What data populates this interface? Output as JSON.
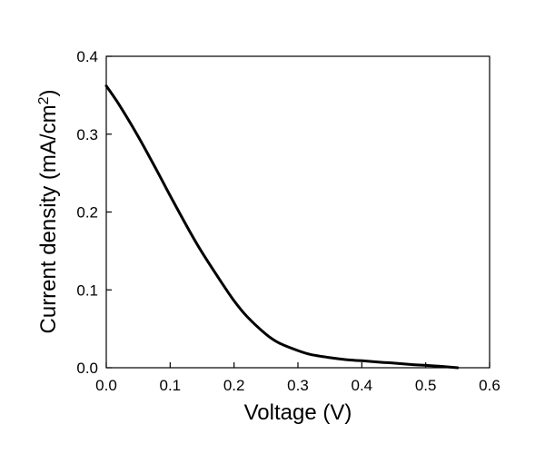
{
  "chart_data": {
    "type": "line",
    "title": "",
    "xlabel": "Voltage (V)",
    "ylabel": "Current density (mA/cm",
    "ylabel_superscript": "2",
    "ylabel_suffix": ")",
    "xlim": [
      0.0,
      0.6
    ],
    "ylim": [
      0.0,
      0.4
    ],
    "x_ticks": [
      0.0,
      0.1,
      0.2,
      0.3,
      0.4,
      0.5,
      0.6
    ],
    "y_ticks": [
      0.0,
      0.1,
      0.2,
      0.3,
      0.4
    ],
    "x_tick_labels": [
      "0.0",
      "0.1",
      "0.2",
      "0.3",
      "0.4",
      "0.5",
      "0.6"
    ],
    "y_tick_labels": [
      "0.0",
      "0.1",
      "0.2",
      "0.3",
      "0.4"
    ],
    "grid": false,
    "legend": "none",
    "line_color": "#000000",
    "series": [
      {
        "x": [
          0.0,
          0.02,
          0.05,
          0.08,
          0.1,
          0.13,
          0.15,
          0.18,
          0.2,
          0.22,
          0.25,
          0.27,
          0.3,
          0.32,
          0.35,
          0.38,
          0.4,
          0.43,
          0.45,
          0.48,
          0.5,
          0.52,
          0.55
        ],
        "values": [
          0.362,
          0.338,
          0.297,
          0.252,
          0.221,
          0.176,
          0.148,
          0.11,
          0.086,
          0.066,
          0.043,
          0.032,
          0.022,
          0.017,
          0.013,
          0.01,
          0.009,
          0.007,
          0.006,
          0.004,
          0.003,
          0.002,
          0.0
        ]
      }
    ]
  }
}
